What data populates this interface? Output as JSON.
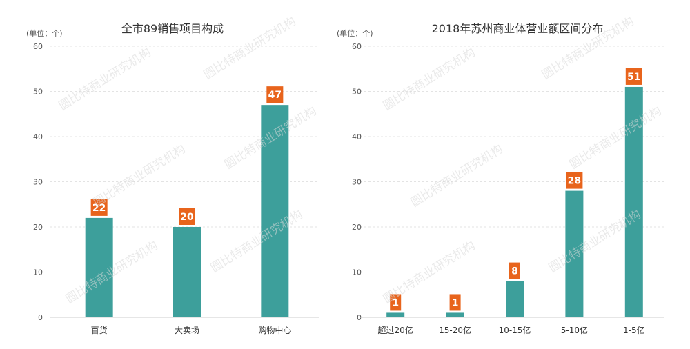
{
  "chart_data": [
    {
      "type": "bar",
      "title": "全市89销售项目构成",
      "unit_label": "(单位：个)",
      "categories": [
        "百货",
        "大卖场",
        "购物中心"
      ],
      "values": [
        22,
        20,
        47
      ],
      "ylim": [
        0,
        60
      ],
      "yticks": [
        0,
        10,
        20,
        30,
        40,
        50,
        60
      ],
      "grid": true,
      "bar_color": "#3d9f9b",
      "label_color": "#e8641c"
    },
    {
      "type": "bar",
      "title": "2018年苏州商业体营业额区间分布",
      "unit_label": "(单位：个)",
      "categories": [
        "超过20亿",
        "15-20亿",
        "10-15亿",
        "5-10亿",
        "1-5亿"
      ],
      "values": [
        1,
        1,
        8,
        28,
        51
      ],
      "ylim": [
        0,
        60
      ],
      "yticks": [
        0,
        10,
        20,
        30,
        40,
        50,
        60
      ],
      "grid": true,
      "bar_color": "#3d9f9b",
      "label_color": "#e8641c"
    }
  ],
  "watermark": {
    "text": "圆比特商业研究机构",
    "color": "#d9d9d9"
  }
}
